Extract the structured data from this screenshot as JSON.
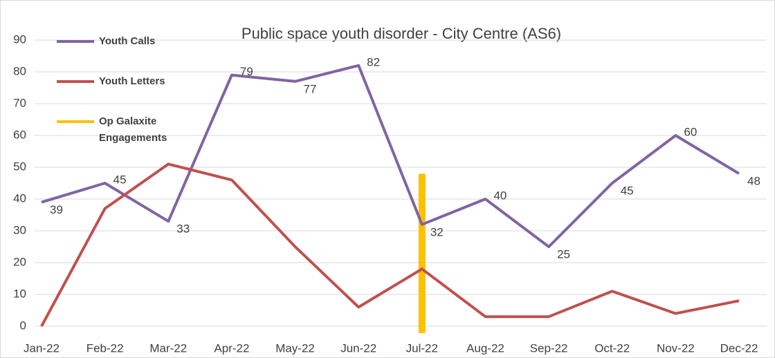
{
  "chart_data": {
    "type": "line",
    "title": "Public space youth disorder -  City Centre (AS6)",
    "categories": [
      "Jan-22",
      "Feb-22",
      "Mar-22",
      "Apr-22",
      "May-22",
      "Jun-22",
      "Jul-22",
      "Aug-22",
      "Sep-22",
      "Oct-22",
      "Nov-22",
      "Dec-22"
    ],
    "series": [
      {
        "name": "Youth Calls",
        "color": "#8064a2",
        "values": [
          39,
          45,
          33,
          79,
          77,
          82,
          32,
          40,
          25,
          45,
          60,
          48
        ],
        "data_labels": true
      },
      {
        "name": "Youth Letters",
        "color": "#c0504d",
        "values": [
          0,
          37,
          51,
          46,
          25,
          6,
          18,
          3,
          3,
          11,
          4,
          8
        ]
      },
      {
        "name": "Op Galaxite Engagements",
        "color": "#ffc000",
        "type": "bar",
        "values": [
          null,
          null,
          null,
          null,
          null,
          null,
          48,
          null,
          null,
          null,
          null,
          null
        ]
      }
    ],
    "ylim": [
      0,
      90
    ],
    "yticks": [
      0,
      10,
      20,
      30,
      40,
      50,
      60,
      70,
      80,
      90
    ],
    "grid": true,
    "legend": "top-left"
  }
}
